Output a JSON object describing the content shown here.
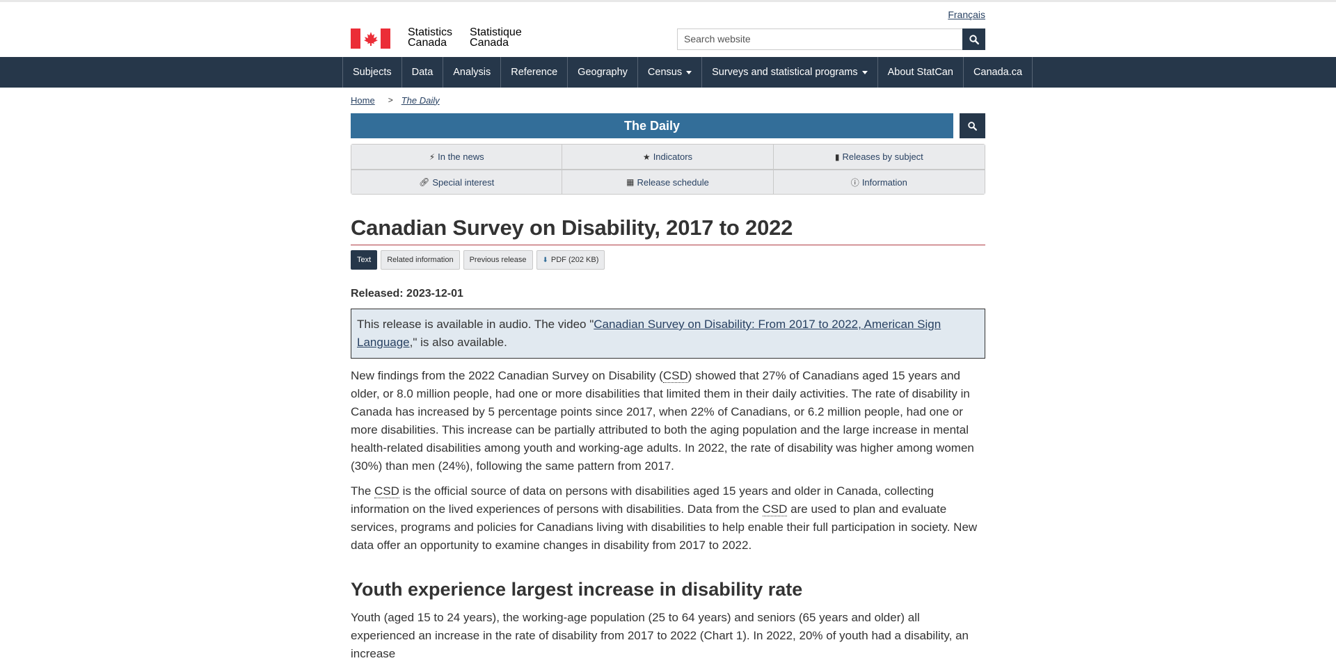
{
  "header": {
    "language_link": "Français",
    "wordmark_en": [
      "Statistics",
      "Canada"
    ],
    "wordmark_fr": [
      "Statistique",
      "Canada"
    ],
    "search_placeholder": "Search website"
  },
  "nav": {
    "items": [
      {
        "label": "Subjects"
      },
      {
        "label": "Data"
      },
      {
        "label": "Analysis"
      },
      {
        "label": "Reference"
      },
      {
        "label": "Geography"
      },
      {
        "label": "Census"
      },
      {
        "label": "Surveys and statistical programs"
      },
      {
        "label": "About StatCan"
      },
      {
        "label": "Canada.ca"
      }
    ]
  },
  "breadcrumb": {
    "home": "Home",
    "separator": ">",
    "current": "The Daily"
  },
  "daily": {
    "title": "The Daily",
    "buttons": [
      {
        "label": "In the news",
        "icon": "bolt-icon"
      },
      {
        "label": "Indicators",
        "icon": "star-icon"
      },
      {
        "label": "Releases by subject",
        "icon": "book-icon"
      },
      {
        "label": "Special interest",
        "icon": "link-icon"
      },
      {
        "label": "Release schedule",
        "icon": "calendar-icon"
      },
      {
        "label": "Information",
        "icon": "info-icon"
      }
    ]
  },
  "article": {
    "title": "Canadian Survey on Disability, 2017 to 2022",
    "tabs": [
      {
        "label": "Text"
      },
      {
        "label": "Related information"
      },
      {
        "label": "Previous release"
      },
      {
        "label": "PDF (202 KB)"
      }
    ],
    "released": "Released: 2023-12-01",
    "notice": {
      "before": "This release is available in audio. The video \"",
      "link": "Canadian Survey on Disability: From 2017 to 2022, American Sign Language",
      "after": ",\" is also available."
    },
    "p1": {
      "a": "New findings from the 2022 Canadian Survey on Disability (",
      "abbr": "CSD",
      "b": ") showed that 27% of Canadians aged 15 years and older, or 8.0 million people, had one or more disabilities that limited them in their daily activities. The rate of disability in Canada has increased by 5 percentage points since 2017, when 22% of Canadians, or 6.2 million people, had one or more disabilities. This increase can be partially attributed to both the aging population and the large increase in mental health-related disabilities among youth and working-age adults. In 2022, the rate of disability was higher among women (30%) than men (24%), following the same pattern from 2017."
    },
    "p2": {
      "a": "The ",
      "abbr1": "CSD",
      "b": " is the official source of data on persons with disabilities aged 15 years and older in Canada, collecting information on the lived experiences of persons with disabilities. Data from the ",
      "abbr2": "CSD",
      "c": " are used to plan and evaluate services, programs and policies for Canadians living with disabilities to help enable their full participation in society. New data offer an opportunity to examine changes in disability from 2017 to 2022."
    },
    "section_heading": "Youth experience largest increase in disability rate",
    "p3": "Youth (aged 15 to 24 years), the working-age population (25 to 64 years) and seniors (65 years and older) all experienced an increase in the rate of disability from 2017 to 2022 (Chart 1). In 2022, 20% of youth had a disability, an increase"
  },
  "colors": {
    "nav_bg": "#26374a",
    "banner_bg": "#336e99",
    "flag_red": "#eb2d37",
    "title_rule": "#af3c43",
    "notice_bg": "#e1e9f0"
  }
}
